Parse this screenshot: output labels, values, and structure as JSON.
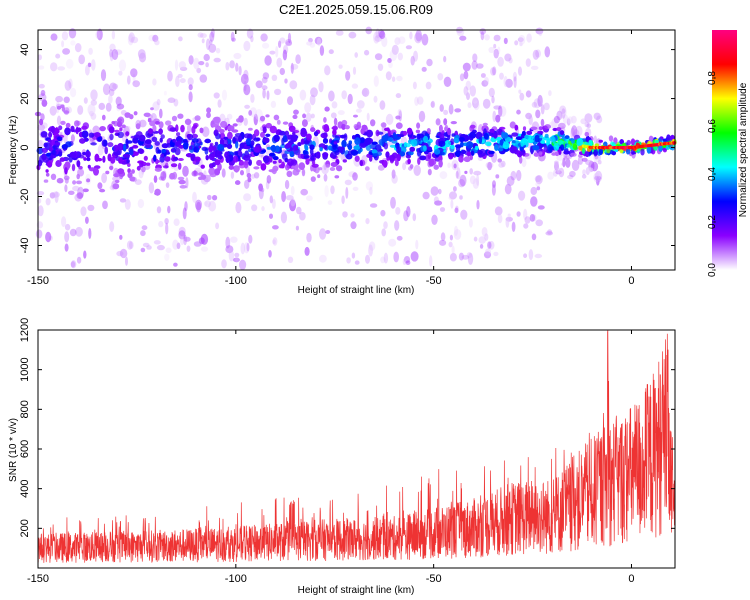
{
  "chart_data": [
    {
      "type": "heatmap",
      "title": "C2E1.2025.059.15.06.R09",
      "xlabel": "Height of straight line (km)",
      "ylabel": "Frequency (Hz)",
      "xlim": [
        -150,
        11
      ],
      "ylim": [
        -50,
        48
      ],
      "xticks": [
        -150,
        -100,
        -50,
        0
      ],
      "yticks": [
        -40,
        -20,
        0,
        20,
        40
      ],
      "colorbar": {
        "label": "Normalized spectral amplitude",
        "range": [
          0,
          1
        ],
        "ticks": [
          0.0,
          0.2,
          0.4,
          0.6,
          0.8
        ],
        "tick_labels": [
          "0.0",
          "0.2",
          "0.4",
          "0.6",
          "0.8"
        ],
        "colormap": [
          "#ffffff",
          "#8a00ff",
          "#0000ff",
          "#00ffff",
          "#00ff00",
          "#ffff00",
          "#ff0000",
          "#ff0080"
        ]
      },
      "band": {
        "description_points": [
          {
            "x": -150,
            "center": 0,
            "halfwidth": 12,
            "peak": 0.28
          },
          {
            "x": -100,
            "center": 0,
            "halfwidth": 10,
            "peak": 0.3
          },
          {
            "x": -50,
            "center": 1,
            "halfwidth": 7,
            "peak": 0.4
          },
          {
            "x": -20,
            "center": 3,
            "halfwidth": 5,
            "peak": 0.5
          },
          {
            "x": -10,
            "center": 0,
            "halfwidth": 2.5,
            "peak": 0.85
          },
          {
            "x": 0,
            "center": 0,
            "halfwidth": 2,
            "peak": 0.95
          },
          {
            "x": 11,
            "center": 2,
            "halfwidth": 2,
            "peak": 0.9
          }
        ]
      }
    },
    {
      "type": "line",
      "xlabel": "Height of straight line (km)",
      "ylabel": "SNR (10 * v/v)",
      "xlim": [
        -150,
        11
      ],
      "ylim": [
        0,
        1200
      ],
      "xticks": [
        -150,
        -100,
        -50,
        0
      ],
      "yticks": [
        200,
        400,
        600,
        800,
        1000,
        1200
      ],
      "color": "#ee3333",
      "envelope": [
        {
          "x": -150,
          "base": 100,
          "peak": 260
        },
        {
          "x": -120,
          "base": 110,
          "peak": 280
        },
        {
          "x": -100,
          "base": 120,
          "peak": 330
        },
        {
          "x": -80,
          "base": 140,
          "peak": 380
        },
        {
          "x": -60,
          "base": 150,
          "peak": 420
        },
        {
          "x": -40,
          "base": 200,
          "peak": 560
        },
        {
          "x": -30,
          "base": 250,
          "peak": 600
        },
        {
          "x": -20,
          "base": 260,
          "peak": 620
        },
        {
          "x": -15,
          "base": 320,
          "peak": 650
        },
        {
          "x": -8,
          "base": 400,
          "peak": 720
        },
        {
          "x": -6,
          "base": 430,
          "peak": 1200
        },
        {
          "x": -2,
          "base": 450,
          "peak": 800
        },
        {
          "x": 2,
          "base": 500,
          "peak": 880
        },
        {
          "x": 6,
          "base": 580,
          "peak": 900
        },
        {
          "x": 9,
          "base": 700,
          "peak": 1140
        },
        {
          "x": 11,
          "base": 150,
          "peak": 700
        }
      ]
    }
  ]
}
